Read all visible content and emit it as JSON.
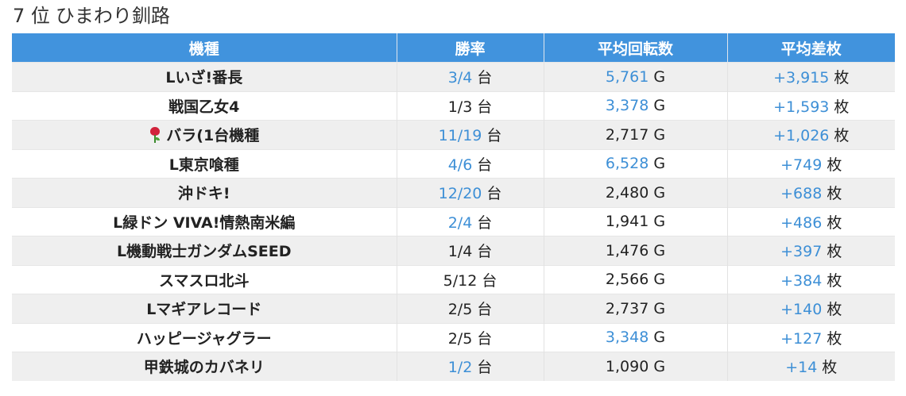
{
  "header": {
    "rank": "7 位",
    "store": "ひまわり釧路"
  },
  "table": {
    "columns": [
      "機種",
      "勝率",
      "平均回転数",
      "平均差枚"
    ],
    "units": {
      "win": "台",
      "spins": "G",
      "diff": "枚"
    },
    "colors": {
      "header_bg": "#4193dd",
      "highlight": "#3d8fd6",
      "row_alt": "#efefef"
    },
    "rows": [
      {
        "name": "Lいざ!番長",
        "icon": "",
        "win": "3/4",
        "win_hl": true,
        "spins": "5,761",
        "spins_hl": true,
        "diff": "+3,915",
        "diff_hl": true
      },
      {
        "name": "戦国乙女4",
        "icon": "",
        "win": "1/3",
        "win_hl": false,
        "spins": "3,378",
        "spins_hl": true,
        "diff": "+1,593",
        "diff_hl": true
      },
      {
        "name": "バラ(1台機種",
        "icon": "rose-icon",
        "win": "11/19",
        "win_hl": true,
        "spins": "2,717",
        "spins_hl": false,
        "diff": "+1,026",
        "diff_hl": true
      },
      {
        "name": "L東京喰種",
        "icon": "",
        "win": "4/6",
        "win_hl": true,
        "spins": "6,528",
        "spins_hl": true,
        "diff": "+749",
        "diff_hl": true
      },
      {
        "name": "沖ドキ!",
        "icon": "",
        "win": "12/20",
        "win_hl": true,
        "spins": "2,480",
        "spins_hl": false,
        "diff": "+688",
        "diff_hl": true
      },
      {
        "name": "L緑ドン VIVA!情熱南米編",
        "icon": "",
        "win": "2/4",
        "win_hl": true,
        "spins": "1,941",
        "spins_hl": false,
        "diff": "+486",
        "diff_hl": true
      },
      {
        "name": "L機動戦士ガンダムSEED",
        "icon": "",
        "win": "1/4",
        "win_hl": false,
        "spins": "1,476",
        "spins_hl": false,
        "diff": "+397",
        "diff_hl": true
      },
      {
        "name": "スマスロ北斗",
        "icon": "",
        "win": "5/12",
        "win_hl": false,
        "spins": "2,566",
        "spins_hl": false,
        "diff": "+384",
        "diff_hl": true
      },
      {
        "name": "Lマギアレコード",
        "icon": "",
        "win": "2/5",
        "win_hl": false,
        "spins": "2,737",
        "spins_hl": false,
        "diff": "+140",
        "diff_hl": true
      },
      {
        "name": "ハッピージャグラー",
        "icon": "",
        "win": "2/5",
        "win_hl": false,
        "spins": "3,348",
        "spins_hl": true,
        "diff": "+127",
        "diff_hl": true
      },
      {
        "name": "甲鉄城のカバネリ",
        "icon": "",
        "win": "1/2",
        "win_hl": true,
        "spins": "1,090",
        "spins_hl": false,
        "diff": "+14",
        "diff_hl": true
      }
    ]
  }
}
